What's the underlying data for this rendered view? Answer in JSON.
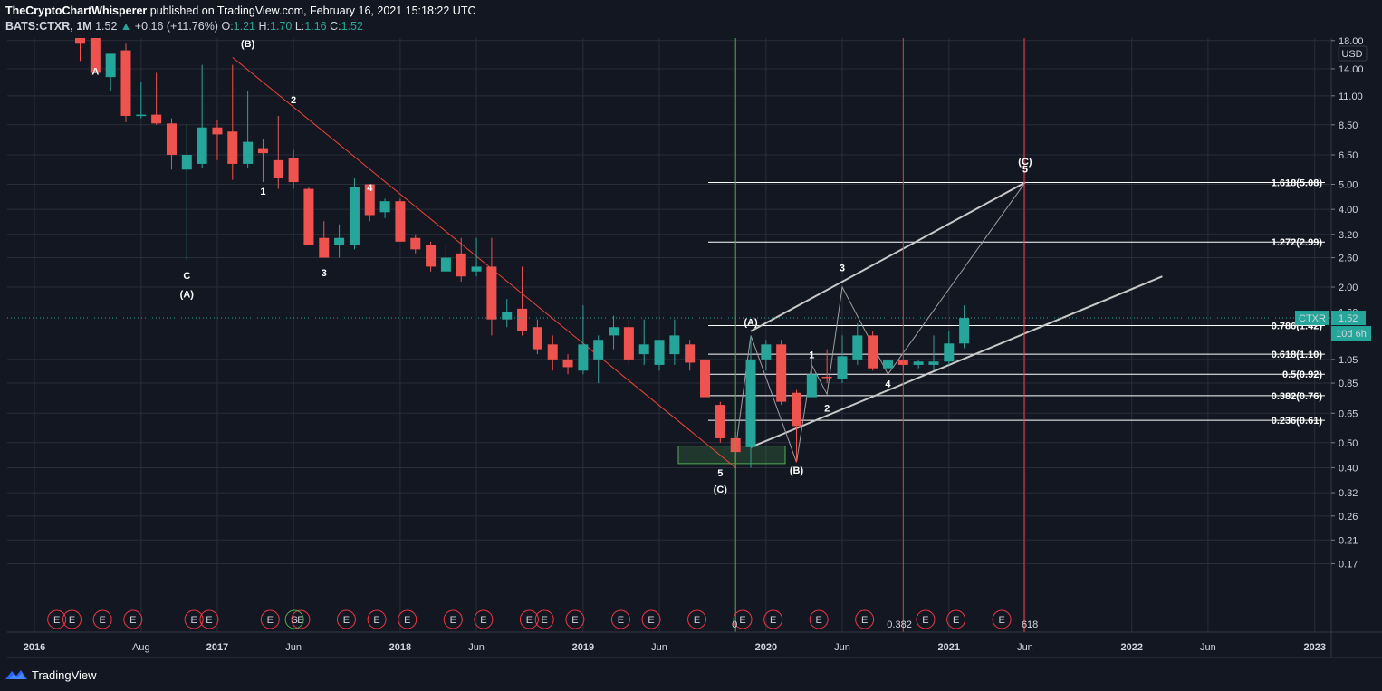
{
  "header": {
    "author": "TheCryptoChartWhisperer",
    "published": "published on TradingView.com, February 16, 2021 15:18:22 UTC",
    "symbol": "BATS:CTXR, 1M",
    "last": "1.52",
    "change": "+0.16 (+11.76%)",
    "o_label": "O:",
    "o": "1.21",
    "h_label": "H:",
    "h": "1.70",
    "l_label": "L:",
    "l": "1.16",
    "c_label": "C:",
    "c": "1.52"
  },
  "footer": {
    "brand": "TradingView",
    "icon": "tradingview-logo-icon"
  },
  "colors": {
    "background": "#131722",
    "grid": "#2a2e39",
    "up": "#26a69a",
    "down": "#ef5350",
    "trend_line": "#f44336",
    "channel": "#c8c8c8",
    "fib_line": "#ffffff",
    "green_zone": "#4caf50",
    "vertical_green": "#4caf50",
    "vertical_red": "#f23645"
  },
  "chart_data": {
    "type": "candlestick",
    "symbol": "CTXR",
    "timeframe": "1M",
    "y_scale": "log",
    "currency": "USD",
    "ylim": [
      0.15,
      18.0
    ],
    "y_ticks": [
      "18.00",
      "14.00",
      "11.00",
      "8.50",
      "6.50",
      "5.00",
      "4.00",
      "3.20",
      "2.60",
      "2.00",
      "1.60",
      "1.05",
      "0.85",
      "0.65",
      "0.50",
      "0.40",
      "0.32",
      "0.26",
      "0.21",
      "0.17"
    ],
    "x_ticks": [
      "2016",
      "Aug",
      "2017",
      "Jun",
      "2018",
      "Jun",
      "2019",
      "Jun",
      "2020",
      "Jun",
      "2021",
      "Jun",
      "2022",
      "Jun",
      "2023"
    ],
    "x_tick_dates": [
      "2016-01",
      "2016-08",
      "2017-01",
      "2017-06",
      "2018-01",
      "2018-06",
      "2019-01",
      "2019-06",
      "2020-01",
      "2020-06",
      "2021-01",
      "2021-06",
      "2022-01",
      "2022-06",
      "2023-01"
    ],
    "candles": [
      {
        "date": "2016-04",
        "o": 19.0,
        "h": 21.0,
        "l": 15.0,
        "c": 17.5
      },
      {
        "date": "2016-05",
        "o": 22.0,
        "h": 25.0,
        "l": 13.5,
        "c": 13.5
      },
      {
        "date": "2016-06",
        "o": 13.0,
        "h": 16.0,
        "l": 11.5,
        "c": 16.0
      },
      {
        "date": "2016-07",
        "o": 16.5,
        "h": 17.5,
        "l": 8.7,
        "c": 9.2
      },
      {
        "date": "2016-08",
        "o": 9.2,
        "h": 12.5,
        "l": 9.0,
        "c": 9.3
      },
      {
        "date": "2016-09",
        "o": 9.3,
        "h": 13.5,
        "l": 8.5,
        "c": 8.6
      },
      {
        "date": "2016-10",
        "o": 8.6,
        "h": 9.0,
        "l": 5.7,
        "c": 6.5
      },
      {
        "date": "2016-11",
        "o": 5.7,
        "h": 8.5,
        "l": 2.55,
        "c": 6.5
      },
      {
        "date": "2016-12",
        "o": 6.0,
        "h": 14.5,
        "l": 5.8,
        "c": 8.3
      },
      {
        "date": "2017-01",
        "o": 8.3,
        "h": 8.9,
        "l": 6.2,
        "c": 7.8
      },
      {
        "date": "2017-02",
        "o": 8.0,
        "h": 14.5,
        "l": 5.2,
        "c": 6.0
      },
      {
        "date": "2017-03",
        "o": 6.0,
        "h": 11.5,
        "l": 5.8,
        "c": 7.3
      },
      {
        "date": "2017-04",
        "o": 6.9,
        "h": 7.5,
        "l": 5.1,
        "c": 6.6
      },
      {
        "date": "2017-05",
        "o": 6.2,
        "h": 9.2,
        "l": 4.8,
        "c": 5.3
      },
      {
        "date": "2017-06",
        "o": 6.3,
        "h": 6.8,
        "l": 4.8,
        "c": 5.1
      },
      {
        "date": "2017-07",
        "o": 4.8,
        "h": 4.9,
        "l": 2.9,
        "c": 2.9
      },
      {
        "date": "2017-08",
        "o": 3.1,
        "h": 3.6,
        "l": 2.6,
        "c": 2.6
      },
      {
        "date": "2017-09",
        "o": 2.9,
        "h": 3.5,
        "l": 2.6,
        "c": 3.1
      },
      {
        "date": "2017-10",
        "o": 2.9,
        "h": 5.3,
        "l": 2.8,
        "c": 4.9
      },
      {
        "date": "2017-11",
        "o": 5.0,
        "h": 5.0,
        "l": 3.6,
        "c": 3.8
      },
      {
        "date": "2017-12",
        "o": 3.9,
        "h": 4.4,
        "l": 3.7,
        "c": 4.3
      },
      {
        "date": "2018-01",
        "o": 4.3,
        "h": 4.4,
        "l": 3.0,
        "c": 3.0
      },
      {
        "date": "2018-02",
        "o": 3.1,
        "h": 3.2,
        "l": 2.7,
        "c": 2.8
      },
      {
        "date": "2018-03",
        "o": 2.9,
        "h": 3.0,
        "l": 2.3,
        "c": 2.4
      },
      {
        "date": "2018-04",
        "o": 2.3,
        "h": 2.9,
        "l": 2.3,
        "c": 2.6
      },
      {
        "date": "2018-05",
        "o": 2.7,
        "h": 3.1,
        "l": 2.1,
        "c": 2.2
      },
      {
        "date": "2018-06",
        "o": 2.3,
        "h": 3.1,
        "l": 2.2,
        "c": 2.4
      },
      {
        "date": "2018-07",
        "o": 2.4,
        "h": 3.1,
        "l": 1.3,
        "c": 1.5
      },
      {
        "date": "2018-08",
        "o": 1.5,
        "h": 1.8,
        "l": 1.4,
        "c": 1.6
      },
      {
        "date": "2018-09",
        "o": 1.65,
        "h": 2.4,
        "l": 1.3,
        "c": 1.35
      },
      {
        "date": "2018-10",
        "o": 1.4,
        "h": 1.5,
        "l": 1.1,
        "c": 1.15
      },
      {
        "date": "2018-11",
        "o": 1.2,
        "h": 1.3,
        "l": 0.95,
        "c": 1.05
      },
      {
        "date": "2018-12",
        "o": 1.05,
        "h": 1.1,
        "l": 0.92,
        "c": 0.98
      },
      {
        "date": "2019-01",
        "o": 0.95,
        "h": 1.7,
        "l": 0.92,
        "c": 1.2
      },
      {
        "date": "2019-02",
        "o": 1.05,
        "h": 1.3,
        "l": 0.85,
        "c": 1.25
      },
      {
        "date": "2019-03",
        "o": 1.3,
        "h": 1.55,
        "l": 1.15,
        "c": 1.4
      },
      {
        "date": "2019-04",
        "o": 1.4,
        "h": 1.5,
        "l": 1.0,
        "c": 1.05
      },
      {
        "date": "2019-05",
        "o": 1.1,
        "h": 1.5,
        "l": 1.0,
        "c": 1.2
      },
      {
        "date": "2019-06",
        "o": 1.0,
        "h": 1.25,
        "l": 0.95,
        "c": 1.25
      },
      {
        "date": "2019-07",
        "o": 1.1,
        "h": 1.5,
        "l": 1.0,
        "c": 1.3
      },
      {
        "date": "2019-08",
        "o": 1.2,
        "h": 1.25,
        "l": 0.95,
        "c": 1.02
      },
      {
        "date": "2019-09",
        "o": 1.05,
        "h": 1.3,
        "l": 0.75,
        "c": 0.75
      },
      {
        "date": "2019-10",
        "o": 0.7,
        "h": 0.72,
        "l": 0.5,
        "c": 0.52
      },
      {
        "date": "2019-11",
        "o": 0.52,
        "h": 0.55,
        "l": 0.4,
        "c": 0.46
      },
      {
        "date": "2019-12",
        "o": 0.48,
        "h": 1.3,
        "l": 0.4,
        "c": 1.05
      },
      {
        "date": "2020-01",
        "o": 1.05,
        "h": 1.25,
        "l": 0.95,
        "c": 1.2
      },
      {
        "date": "2020-02",
        "o": 1.2,
        "h": 1.25,
        "l": 0.7,
        "c": 0.72
      },
      {
        "date": "2020-03",
        "o": 0.78,
        "h": 0.8,
        "l": 0.42,
        "c": 0.58
      },
      {
        "date": "2020-04",
        "o": 0.75,
        "h": 1.1,
        "l": 0.75,
        "c": 0.92
      },
      {
        "date": "2020-05",
        "o": 0.9,
        "h": 1.15,
        "l": 0.85,
        "c": 0.89
      },
      {
        "date": "2020-06",
        "o": 0.88,
        "h": 1.3,
        "l": 0.85,
        "c": 1.08
      },
      {
        "date": "2020-07",
        "o": 1.05,
        "h": 1.45,
        "l": 1.0,
        "c": 1.3
      },
      {
        "date": "2020-08",
        "o": 1.3,
        "h": 1.35,
        "l": 0.95,
        "c": 0.97
      },
      {
        "date": "2020-09",
        "o": 0.97,
        "h": 1.1,
        "l": 0.9,
        "c": 1.04
      },
      {
        "date": "2020-10",
        "o": 1.04,
        "h": 1.05,
        "l": 0.95,
        "c": 1.0
      },
      {
        "date": "2020-11",
        "o": 1.0,
        "h": 1.05,
        "l": 0.97,
        "c": 1.03
      },
      {
        "date": "2020-12",
        "o": 1.0,
        "h": 1.3,
        "l": 0.95,
        "c": 1.03
      },
      {
        "date": "2021-01",
        "o": 1.03,
        "h": 1.35,
        "l": 1.0,
        "c": 1.21
      },
      {
        "date": "2021-02",
        "o": 1.21,
        "h": 1.7,
        "l": 1.16,
        "c": 1.52
      }
    ],
    "last_price": {
      "symbol_label": "CTXR",
      "value": "1.52",
      "countdown": "10d 6h"
    },
    "fib_levels": [
      {
        "label": "1.618(5.08)",
        "value": 5.08
      },
      {
        "label": "1.272(2.99)",
        "value": 2.99
      },
      {
        "label": "0.786(1.42)",
        "value": 1.42
      },
      {
        "label": "0.618(1.10)",
        "value": 1.1
      },
      {
        "label": "0.5(0.92)",
        "value": 0.92
      },
      {
        "label": "0.382(0.76)",
        "value": 0.76
      },
      {
        "label": "0.236(0.61)",
        "value": 0.61
      }
    ],
    "wave_labels": [
      {
        "text": "A",
        "date": "2016-05",
        "price": 13.3
      },
      {
        "text": "(B)",
        "date": "2017-03",
        "price": 17.0
      },
      {
        "text": "2",
        "date": "2017-06",
        "price": 10.3
      },
      {
        "text": "1",
        "date": "2017-04",
        "price": 4.55
      },
      {
        "text": "4",
        "date": "2017-11",
        "price": 4.7
      },
      {
        "text": "C",
        "date": "2016-11",
        "price": 2.15
      },
      {
        "text": "(A)",
        "date": "2016-11",
        "price": 1.82
      },
      {
        "text": "3",
        "date": "2017-08",
        "price": 2.2
      },
      {
        "text": "5",
        "date": "2019-10",
        "price": 0.37
      },
      {
        "text": "(C)",
        "date": "2019-10",
        "price": 0.32
      },
      {
        "text": "(B)",
        "date": "2020-03",
        "price": 0.38
      },
      {
        "text": "(A)",
        "date": "2019-12",
        "price": 1.42
      },
      {
        "text": "1",
        "date": "2020-04",
        "price": 1.06
      },
      {
        "text": "2",
        "date": "2020-05",
        "price": 0.66
      },
      {
        "text": "3",
        "date": "2020-06",
        "price": 2.3
      },
      {
        "text": "4",
        "date": "2020-09",
        "price": 0.82
      },
      {
        "text": "(C)",
        "date": "2021-06",
        "price": 5.95
      },
      {
        "text": "5",
        "date": "2021-06",
        "price": 5.55
      }
    ],
    "events_label": "E",
    "event_months": [
      "2016-03",
      "2016-04",
      "2016-06",
      "2016-08",
      "2016-12",
      "2017-01",
      "2017-05",
      "2017-07",
      "2017-10",
      "2017-12",
      "2018-02",
      "2018-05",
      "2018-07",
      "2018-10",
      "2018-11",
      "2019-01",
      "2019-04",
      "2019-06",
      "2019-09",
      "2019-12",
      "2020-02",
      "2020-05",
      "2020-08",
      "2020-12",
      "2021-02",
      "2021-05"
    ],
    "split_event": {
      "label": "S",
      "date": "2017-06"
    },
    "time_markers": [
      {
        "label": "0",
        "date": "2019-11",
        "color": "green"
      },
      {
        "label": "0.382",
        "date": "2020-10",
        "color": "red"
      },
      {
        "label": "618",
        "date": "2021-06",
        "color": "red"
      }
    ],
    "price_axis_unit": "USD"
  }
}
